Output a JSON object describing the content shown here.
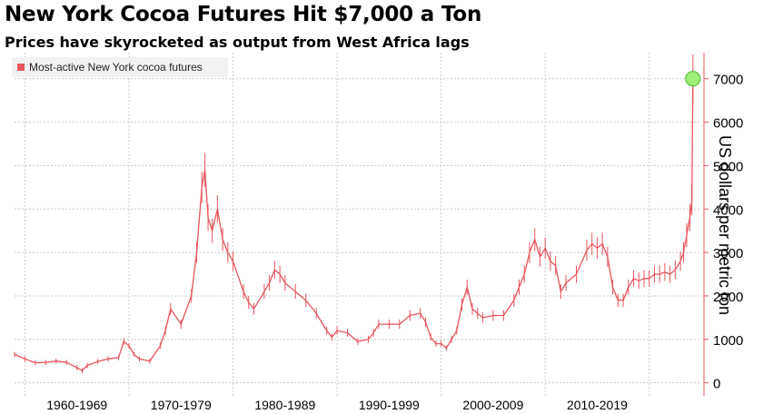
{
  "header": {
    "title": "New York Cocoa Futures Hit $7,000 a Ton",
    "subtitle": "Prices have skyrocketed as output from West Africa lags"
  },
  "chart_data": {
    "type": "line",
    "title": "New York Cocoa Futures Hit $7,000 a Ton",
    "subtitle": "Prices have skyrocketed as output from West Africa lags",
    "xlabel": "",
    "ylabel": "US dollars per metric ton",
    "ylim": [
      -300,
      7600
    ],
    "xlim": [
      1959.0,
      2025.0
    ],
    "y_ticks": [
      0,
      1000,
      2000,
      3000,
      4000,
      5000,
      6000,
      7000
    ],
    "y_tick_labels": [
      "0",
      "1000",
      "2000",
      "3000",
      "4000",
      "5000",
      "6000",
      "7000"
    ],
    "x_categories": [
      {
        "label": "1960-1969",
        "start": 1960,
        "end": 1970
      },
      {
        "label": "1970-1979",
        "start": 1970,
        "end": 1980
      },
      {
        "label": "1980-1989",
        "start": 1980,
        "end": 1990
      },
      {
        "label": "1990-1999",
        "start": 1990,
        "end": 2000
      },
      {
        "label": "2000-2009",
        "start": 2000,
        "end": 2010
      },
      {
        "label": "2010-2019",
        "start": 2010,
        "end": 2020
      }
    ],
    "grid": true,
    "legend": {
      "position": "top-left",
      "entries": [
        "Most-active New York cocoa futures"
      ]
    },
    "colors": {
      "series": "#e8555c",
      "highlight_fill": "#9ef07a",
      "highlight_stroke": "#58b83a",
      "grid": "#c8c8c8",
      "legend_bg": "#f2f2f2"
    },
    "series": [
      {
        "name": "Most-active New York cocoa futures",
        "x": [
          1959.0,
          1960.0,
          1961.0,
          1962.0,
          1963.0,
          1964.0,
          1965.0,
          1965.5,
          1966.0,
          1967.0,
          1968.0,
          1969.0,
          1969.5,
          1970.0,
          1970.5,
          1971.0,
          1972.0,
          1973.0,
          1973.5,
          1974.0,
          1975.0,
          1976.0,
          1976.5,
          1977.0,
          1977.3,
          1977.6,
          1978.0,
          1978.5,
          1979.0,
          1979.5,
          1980.0,
          1981.0,
          1981.5,
          1982.0,
          1983.0,
          1983.5,
          1984.0,
          1984.5,
          1985.0,
          1986.0,
          1987.0,
          1988.0,
          1989.0,
          1989.5,
          1990.0,
          1991.0,
          1992.0,
          1993.0,
          1993.5,
          1994.0,
          1995.0,
          1996.0,
          1997.0,
          1998.0,
          1998.5,
          1999.0,
          1999.5,
          2000.0,
          2000.5,
          2001.0,
          2001.5,
          2002.0,
          2002.5,
          2003.0,
          2003.5,
          2004.0,
          2005.0,
          2006.0,
          2007.0,
          2007.5,
          2008.0,
          2008.5,
          2009.0,
          2009.5,
          2010.0,
          2010.5,
          2011.0,
          2011.5,
          2012.0,
          2013.0,
          2014.0,
          2014.5,
          2015.0,
          2015.5,
          2016.0,
          2016.5,
          2017.0,
          2017.5,
          2018.0,
          2018.5,
          2019.0,
          2019.5,
          2020.0,
          2020.5,
          2021.0,
          2021.5,
          2022.0,
          2022.5,
          2023.0,
          2023.3,
          2023.6,
          2023.9,
          2024.1,
          2024.2
        ],
        "y": [
          650,
          550,
          460,
          470,
          500,
          470,
          350,
          280,
          400,
          490,
          550,
          580,
          950,
          850,
          650,
          550,
          500,
          850,
          1200,
          1700,
          1350,
          2000,
          3000,
          4500,
          4900,
          3800,
          3500,
          4000,
          3300,
          3000,
          2800,
          2100,
          1850,
          1700,
          2100,
          2300,
          2600,
          2500,
          2300,
          2100,
          1900,
          1600,
          1200,
          1050,
          1200,
          1150,
          950,
          1000,
          1150,
          1350,
          1350,
          1350,
          1550,
          1600,
          1400,
          1050,
          900,
          900,
          800,
          1000,
          1200,
          1800,
          2200,
          1700,
          1600,
          1500,
          1550,
          1550,
          1900,
          2200,
          2500,
          3000,
          3300,
          2900,
          3100,
          2800,
          2700,
          2100,
          2300,
          2500,
          3050,
          3200,
          3100,
          3200,
          2900,
          2200,
          1900,
          1900,
          2200,
          2400,
          2350,
          2400,
          2400,
          2500,
          2500,
          2550,
          2500,
          2600,
          2800,
          3000,
          3400,
          3800,
          4200,
          7000
        ]
      }
    ],
    "highlight_point": {
      "x": 2024.2,
      "y": 7000
    }
  }
}
